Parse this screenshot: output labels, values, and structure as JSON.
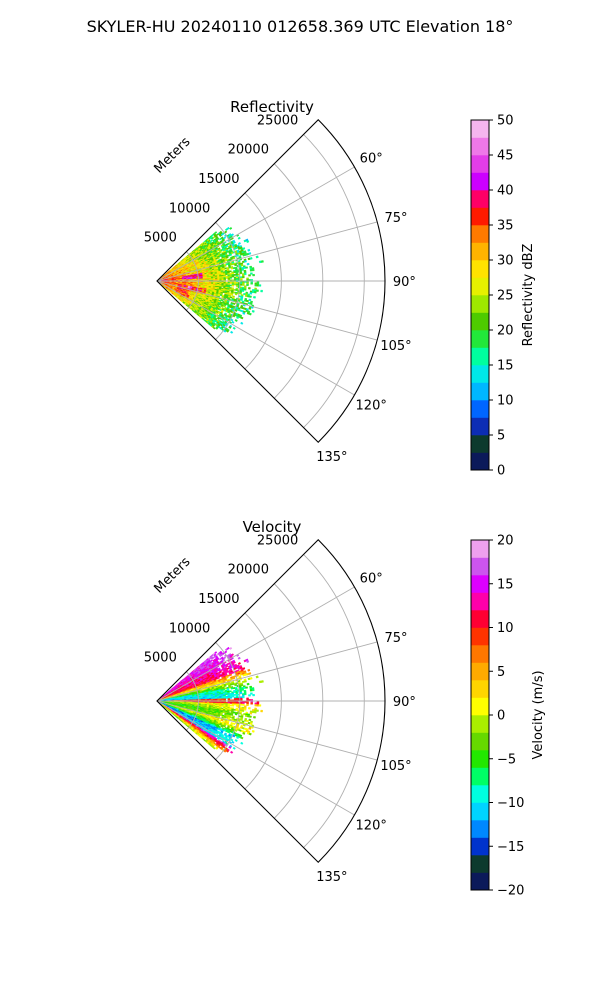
{
  "figure": {
    "title": "SKYLER-HU  20240110  012658.369 UTC Elevation 18°"
  },
  "chart_data": [
    {
      "type": "heatmap",
      "subtype": "polar-sector-ppi",
      "title": "Reflectivity",
      "range_label": "Meters",
      "range_ticks": [
        5000,
        10000,
        15000,
        20000,
        25000
      ],
      "range_max": 27500,
      "azimuth_range": [
        45,
        135
      ],
      "azimuth_ticks": [
        60,
        75,
        90,
        105,
        120,
        135
      ],
      "azimuth_tick_labels": [
        "60°",
        "75°",
        "90°",
        "105°",
        "120°",
        "135°"
      ],
      "grid": true,
      "echo_extent": {
        "azimuth": [
          50,
          130
        ],
        "max_range_m": 12000
      },
      "colorbar": {
        "label": "Reflectivity dBZ",
        "min": 0,
        "max": 50,
        "ticks": [
          0,
          5,
          10,
          15,
          20,
          25,
          30,
          35,
          40,
          45,
          50
        ],
        "tick_labels": [
          "0",
          "5",
          "10",
          "15",
          "20",
          "25",
          "30",
          "35",
          "40",
          "45",
          "50"
        ],
        "stops": [
          {
            "v": 0,
            "c": "#0b1a5a"
          },
          {
            "v": 2.5,
            "c": "#0c3a2e"
          },
          {
            "v": 5,
            "c": "#0c2db5"
          },
          {
            "v": 7.5,
            "c": "#0066ff"
          },
          {
            "v": 10,
            "c": "#00b7ff"
          },
          {
            "v": 12.5,
            "c": "#00e8e8"
          },
          {
            "v": 15,
            "c": "#00ff9f"
          },
          {
            "v": 17.5,
            "c": "#22e83a"
          },
          {
            "v": 20,
            "c": "#4ecb00"
          },
          {
            "v": 22.5,
            "c": "#9fe800"
          },
          {
            "v": 25,
            "c": "#e6f000"
          },
          {
            "v": 27.5,
            "c": "#ffe200"
          },
          {
            "v": 30,
            "c": "#ffb300"
          },
          {
            "v": 32.5,
            "c": "#ff7a00"
          },
          {
            "v": 35,
            "c": "#ff1a00"
          },
          {
            "v": 37.5,
            "c": "#ff0066"
          },
          {
            "v": 40,
            "c": "#cc00ff"
          },
          {
            "v": 42.5,
            "c": "#e23de8"
          },
          {
            "v": 45,
            "c": "#ee78e8"
          },
          {
            "v": 47.5,
            "c": "#f5b5ef"
          },
          {
            "v": 50,
            "c": "#fde8fb"
          }
        ]
      }
    },
    {
      "type": "heatmap",
      "subtype": "polar-sector-ppi",
      "title": "Velocity",
      "range_label": "Meters",
      "range_ticks": [
        5000,
        10000,
        15000,
        20000,
        25000
      ],
      "range_max": 27500,
      "azimuth_range": [
        45,
        135
      ],
      "azimuth_ticks": [
        60,
        75,
        90,
        105,
        120,
        135
      ],
      "azimuth_tick_labels": [
        "60°",
        "75°",
        "90°",
        "105°",
        "120°",
        "135°"
      ],
      "grid": true,
      "echo_extent": {
        "azimuth": [
          50,
          130
        ],
        "max_range_m": 12000
      },
      "colorbar": {
        "label": "Velocity (m/s)",
        "min": -20,
        "max": 20,
        "ticks": [
          -20,
          -15,
          -10,
          -5,
          0,
          5,
          10,
          15,
          20
        ],
        "tick_labels": [
          "−20",
          "−15",
          "−10",
          "−5",
          "0",
          "5",
          "10",
          "15",
          "20"
        ],
        "stops": [
          {
            "v": -20,
            "c": "#0b1a5a"
          },
          {
            "v": -18,
            "c": "#0c3a2e"
          },
          {
            "v": -16,
            "c": "#0033cc"
          },
          {
            "v": -14,
            "c": "#0088ff"
          },
          {
            "v": -12,
            "c": "#00d4ff"
          },
          {
            "v": -10,
            "c": "#00ffe0"
          },
          {
            "v": -8,
            "c": "#00ff66"
          },
          {
            "v": -6,
            "c": "#22e800"
          },
          {
            "v": -4,
            "c": "#66d900"
          },
          {
            "v": -2,
            "c": "#aaee00"
          },
          {
            "v": 0,
            "c": "#ffff00"
          },
          {
            "v": 2,
            "c": "#ffd500"
          },
          {
            "v": 4,
            "c": "#ffaa00"
          },
          {
            "v": 6,
            "c": "#ff7700"
          },
          {
            "v": 8,
            "c": "#ff3300"
          },
          {
            "v": 10,
            "c": "#ff0033"
          },
          {
            "v": 12,
            "c": "#ff00aa"
          },
          {
            "v": 14,
            "c": "#dd00ff"
          },
          {
            "v": 16,
            "c": "#cc55ee"
          },
          {
            "v": 18,
            "c": "#eea0ee"
          },
          {
            "v": 20,
            "c": "#fde8fb"
          }
        ]
      }
    }
  ]
}
